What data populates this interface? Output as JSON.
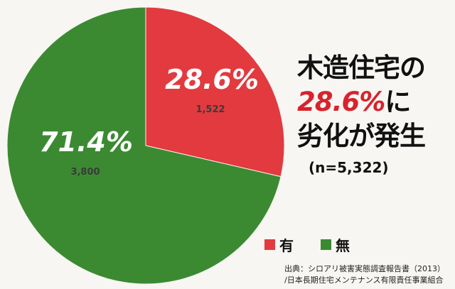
{
  "chart_data": {
    "type": "pie",
    "total_label": "(n=5,322)",
    "slices": [
      {
        "label": "有",
        "percent": 28.6,
        "percent_label": "28.6%",
        "count": 1522,
        "count_label": "1,522",
        "color": "#e23a3f"
      },
      {
        "label": "無",
        "percent": 71.4,
        "percent_label": "71.4%",
        "count": 3800,
        "count_label": "3,800",
        "color": "#3b8a32"
      }
    ],
    "legend_placement": "bottom-right"
  },
  "headline": {
    "line1": "木造住宅の",
    "line2_value": "28.6%",
    "line2_suffix": "に",
    "line3": "劣化が発生"
  },
  "sample_size": "(n=5,322)",
  "legend": {
    "yes": "有",
    "no": "無"
  },
  "source": {
    "line1": "出典：シロアリ被害実態調査報告書（2013）",
    "line2": "/日本長期住宅メンテナンス有限責任事業組合"
  }
}
